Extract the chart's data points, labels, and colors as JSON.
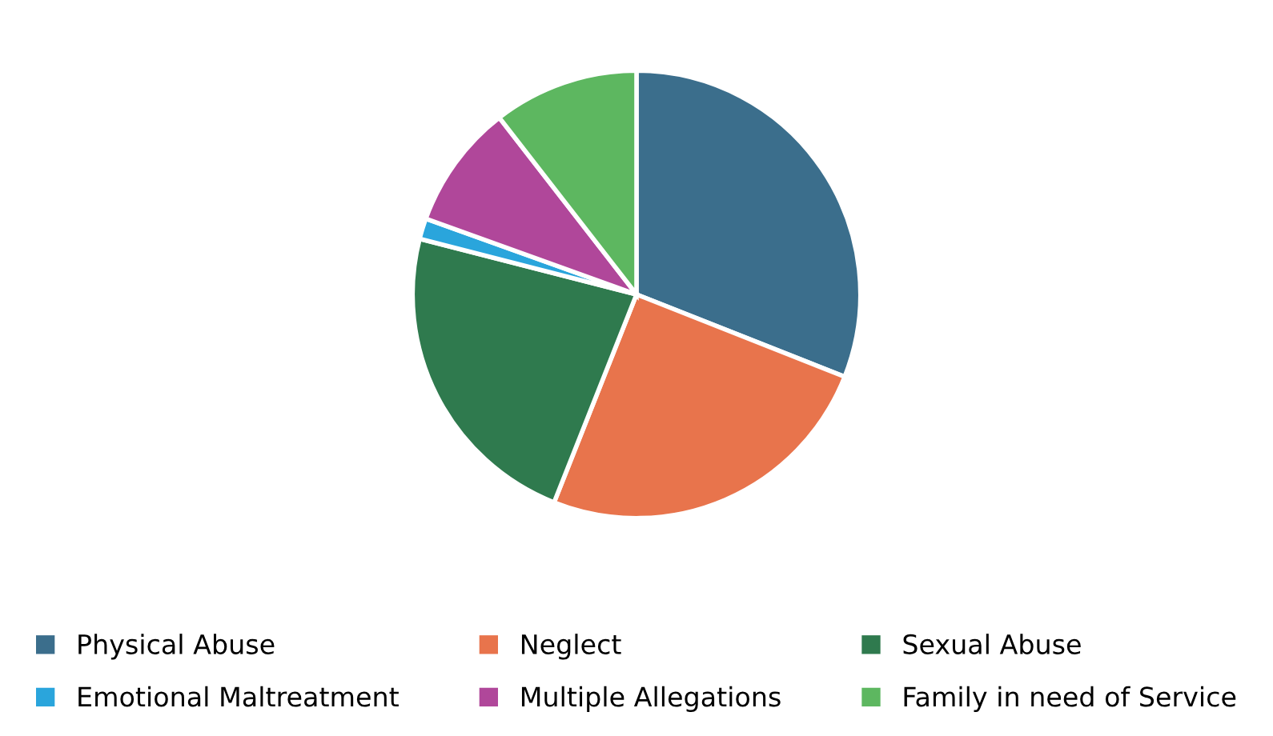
{
  "chart_data": {
    "type": "pie",
    "categories": [
      "Physical Abuse",
      "Neglect",
      "Sexual Abuse",
      "Emotional Maltreatment",
      "Multiple Allegations",
      "Family in need of Service"
    ],
    "values": [
      31,
      25,
      23,
      1.5,
      9,
      10.5
    ],
    "colors": [
      "#3b6e8c",
      "#e8744c",
      "#2f7a4e",
      "#2aa5dc",
      "#b0479a",
      "#5db760"
    ],
    "legend": "bottom"
  }
}
